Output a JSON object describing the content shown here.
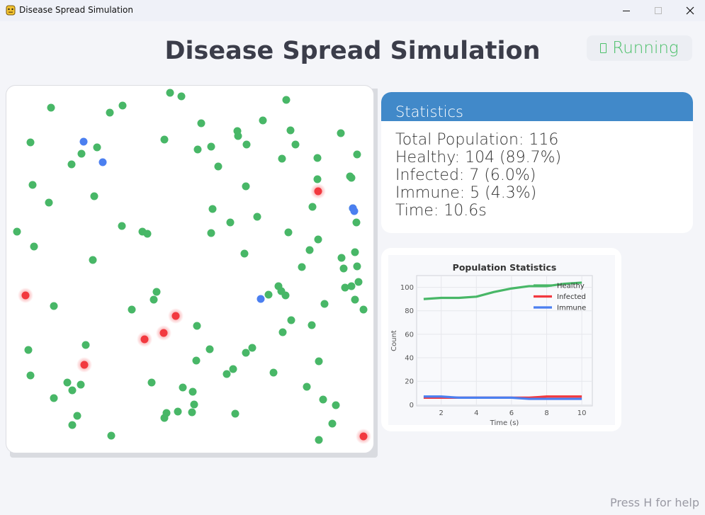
{
  "window": {
    "title": "Disease Spread Simulation",
    "icon": "python-icon",
    "controls": [
      "minimize-icon",
      "maximize-icon",
      "close-icon"
    ]
  },
  "header": {
    "title": "Disease Spread Simulation",
    "status": "Running",
    "status_color": "#4cc06a"
  },
  "colors": {
    "healthy": "#48b767",
    "infected": "#f2393f",
    "immune": "#4b7ff0",
    "stats_header": "#4189c9"
  },
  "simulation": {
    "healthy_count": 104,
    "infected_count": 7,
    "immune_count": 5
  },
  "stats": {
    "title": "Statistics",
    "lines": [
      "Total Population: 116",
      "Healthy: 104 (89.7%)",
      "Infected: 7 (6.0%)",
      "Immune: 5 (4.3%)",
      "Time: 10.6s"
    ]
  },
  "chart_data": {
    "type": "line",
    "title": "Population Statistics",
    "xlabel": "Time (s)",
    "ylabel": "Count",
    "xlim": [
      0.6,
      10.6
    ],
    "ylim": [
      -1,
      110
    ],
    "x_ticks": [
      2,
      4,
      6,
      8,
      10
    ],
    "y_ticks": [
      0,
      20,
      40,
      60,
      80,
      100
    ],
    "grid": true,
    "legend": "top-right",
    "x": [
      1,
      2,
      3,
      4,
      5,
      6,
      7,
      8,
      9,
      10
    ],
    "series": [
      {
        "name": "Healthy",
        "color": "#48b767",
        "values": [
          90,
          91,
          91,
          92,
          96,
          99,
          101,
          101,
          103,
          104
        ]
      },
      {
        "name": "Infected",
        "color": "#f2393f",
        "values": [
          6,
          6,
          6,
          6,
          6,
          6,
          6,
          7,
          7,
          7
        ]
      },
      {
        "name": "Immune",
        "color": "#4b7ff0",
        "values": [
          7,
          7,
          6,
          6,
          6,
          6,
          5,
          5,
          5,
          5
        ]
      }
    ]
  },
  "footer": {
    "help": "Press H for help"
  }
}
